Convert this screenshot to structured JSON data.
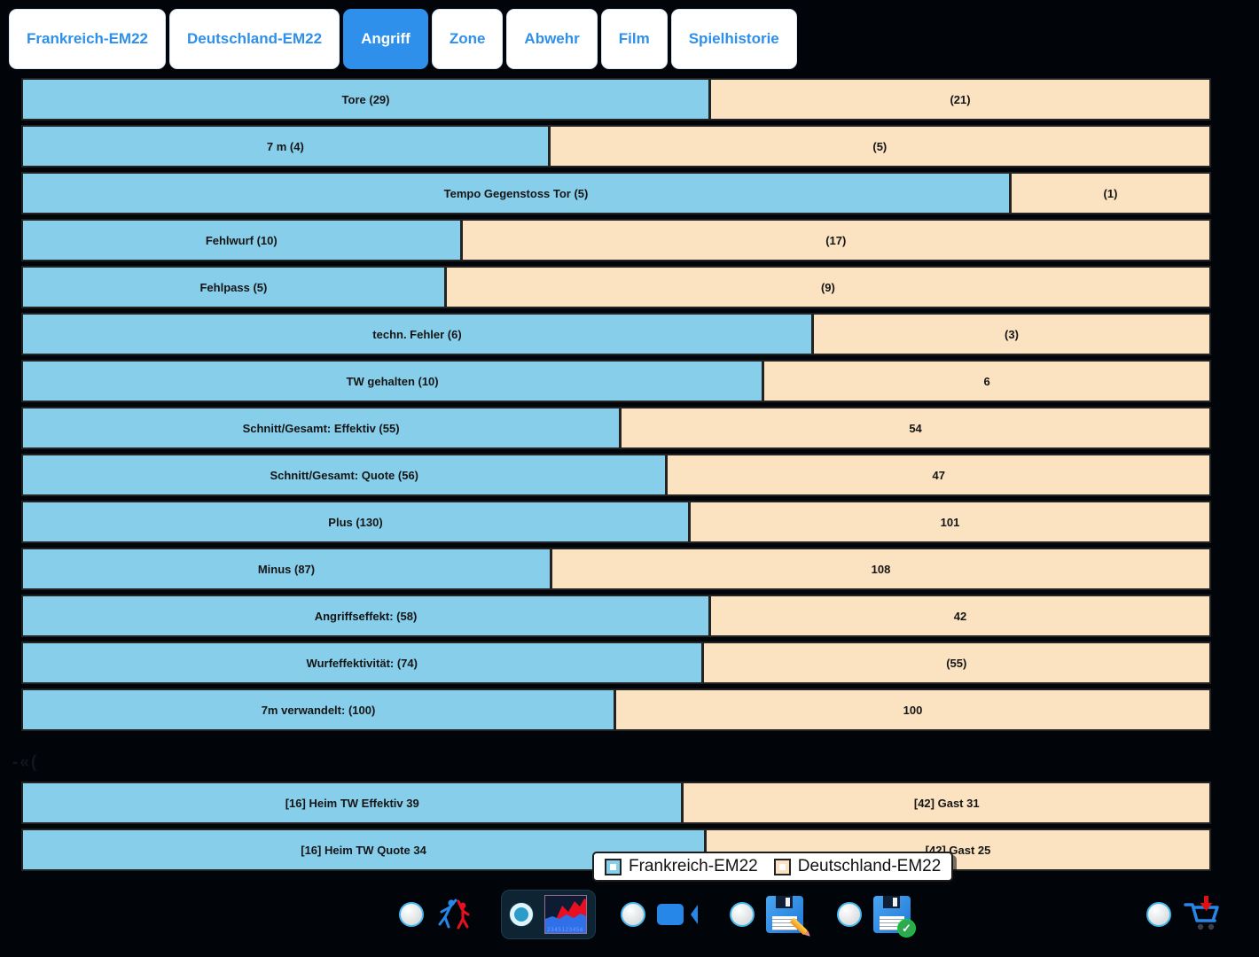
{
  "tabs": [
    {
      "label": "Frankreich-EM22",
      "active": false
    },
    {
      "label": "Deutschland-EM22",
      "active": false
    },
    {
      "label": "Angriff",
      "active": true
    },
    {
      "label": "Zone",
      "active": false
    },
    {
      "label": "Abwehr",
      "active": false
    },
    {
      "label": "Film",
      "active": false
    },
    {
      "label": "Spielhistorie",
      "active": false
    }
  ],
  "chart_data": {
    "type": "bar",
    "orientation": "horizontal",
    "stacking": "two-segment share of row total",
    "series_names": [
      "Frankreich-EM22",
      "Deutschland-EM22"
    ],
    "colors": {
      "home": "#87CEEB",
      "guest": "#FBE2C1",
      "border": "#232323"
    },
    "rows": [
      {
        "label": "Tore (29)",
        "value_label": "(21)",
        "home": 29,
        "guest": 21,
        "section": 1
      },
      {
        "label": "7 m (4)",
        "value_label": "(5)",
        "home": 4,
        "guest": 5,
        "section": 1
      },
      {
        "label": "Tempo Gegenstoss Tor (5)",
        "value_label": "(1)",
        "home": 5,
        "guest": 1,
        "section": 1
      },
      {
        "label": "Fehlwurf (10)",
        "value_label": "(17)",
        "home": 10,
        "guest": 17,
        "section": 1
      },
      {
        "label": "Fehlpass (5)",
        "value_label": "(9)",
        "home": 5,
        "guest": 9,
        "section": 1
      },
      {
        "label": "techn. Fehler (6)",
        "value_label": "(3)",
        "home": 6,
        "guest": 3,
        "section": 1
      },
      {
        "label": "TW gehalten (10)",
        "value_label": "6",
        "home": 10,
        "guest": 6,
        "section": 1
      },
      {
        "label": "Schnitt/Gesamt: Effektiv (55)",
        "value_label": "54",
        "home": 55,
        "guest": 54,
        "section": 1
      },
      {
        "label": "Schnitt/Gesamt: Quote (56)",
        "value_label": "47",
        "home": 56,
        "guest": 47,
        "section": 1
      },
      {
        "label": "Plus (130)",
        "value_label": "101",
        "home": 130,
        "guest": 101,
        "section": 1
      },
      {
        "label": "Minus (87)",
        "value_label": "108",
        "home": 87,
        "guest": 108,
        "section": 1
      },
      {
        "label": "Angriffseffekt: (58)",
        "value_label": "42",
        "home": 58,
        "guest": 42,
        "section": 1
      },
      {
        "label": "Wurfeffektivität: (74)",
        "value_label": "(55)",
        "home": 74,
        "guest": 55,
        "section": 1
      },
      {
        "label": "7m verwandelt: (100)",
        "value_label": "100",
        "home": 100,
        "guest": 100,
        "section": 1
      },
      {
        "label": "[16] Heim TW Effektiv 39",
        "value_label": "[42] Gast  31",
        "home": 39,
        "guest": 31,
        "section": 2
      },
      {
        "label": "[16] Heim TW Quote 34",
        "value_label": "[42] Gast  25",
        "home": 34,
        "guest": 25,
        "section": 2
      }
    ],
    "legend_position": "bottom-overlay"
  },
  "legend": {
    "items": [
      {
        "label": "Frankreich-EM22",
        "color": "#87CEEB"
      },
      {
        "label": "Deutschland-EM22",
        "color": "#FBE2C1"
      }
    ]
  },
  "toolbar": {
    "options": [
      {
        "icon": "players-icon",
        "selected": false
      },
      {
        "icon": "area-chart-icon",
        "selected": true
      },
      {
        "icon": "video-camera-icon",
        "selected": false
      },
      {
        "icon": "save-edit-icon",
        "selected": false
      },
      {
        "icon": "save-confirm-icon",
        "selected": false
      },
      {
        "icon": "cart-download-icon",
        "selected": false
      }
    ],
    "accent_color": "#2787e8"
  }
}
